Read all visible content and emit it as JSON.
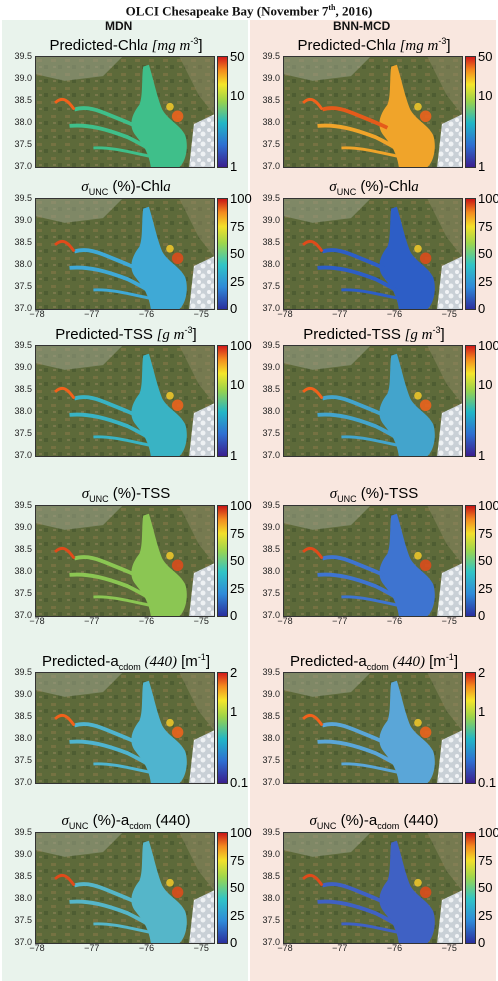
{
  "title": {
    "main": "OLCI Chesapeake Bay (November 7",
    "sup": "th",
    "end": ", 2016)"
  },
  "columns": [
    {
      "label": "MDN"
    },
    {
      "label": "BNN-MCD"
    }
  ],
  "panels": {
    "chla": {
      "pre": "Predicted-Chl",
      "var": "a",
      "unit": " [mg m",
      "unit_sup": "-3",
      "unit_end": "]"
    },
    "unc_chla": {
      "sigma": "σ",
      "sub": "UNC",
      "mid": " (%)-Chl",
      "var": "a"
    },
    "tss": {
      "pre": "Predicted-TSS",
      "unit": " [g m",
      "unit_sup": "-3",
      "unit_end": "]"
    },
    "unc_tss": {
      "sigma": "σ",
      "sub": "UNC",
      "mid": " (%)-TSS"
    },
    "acdom": {
      "pre": "Predicted-a",
      "sub": "cdom",
      "wl": " (440)",
      "unit": " [m",
      "unit_sup": "-1",
      "unit_end": "]"
    },
    "unc_acdom": {
      "sigma": "σ",
      "sub": "UNC",
      "mid": " (%)-a",
      "sub2": "cdom",
      "wl": " (440)"
    }
  },
  "yticks": [
    "39.5",
    "39.0",
    "38.5",
    "38.0",
    "37.5",
    "37.0"
  ],
  "xticks": [
    "−78",
    "−77",
    "−76",
    "−75"
  ],
  "colorbars": {
    "chla": [
      "50",
      "10",
      "1"
    ],
    "unc": [
      "100",
      "75",
      "50",
      "25",
      "0"
    ],
    "tss": [
      "100",
      "10",
      "1"
    ],
    "acdom": [
      "2",
      "1",
      "0.1"
    ]
  }
}
